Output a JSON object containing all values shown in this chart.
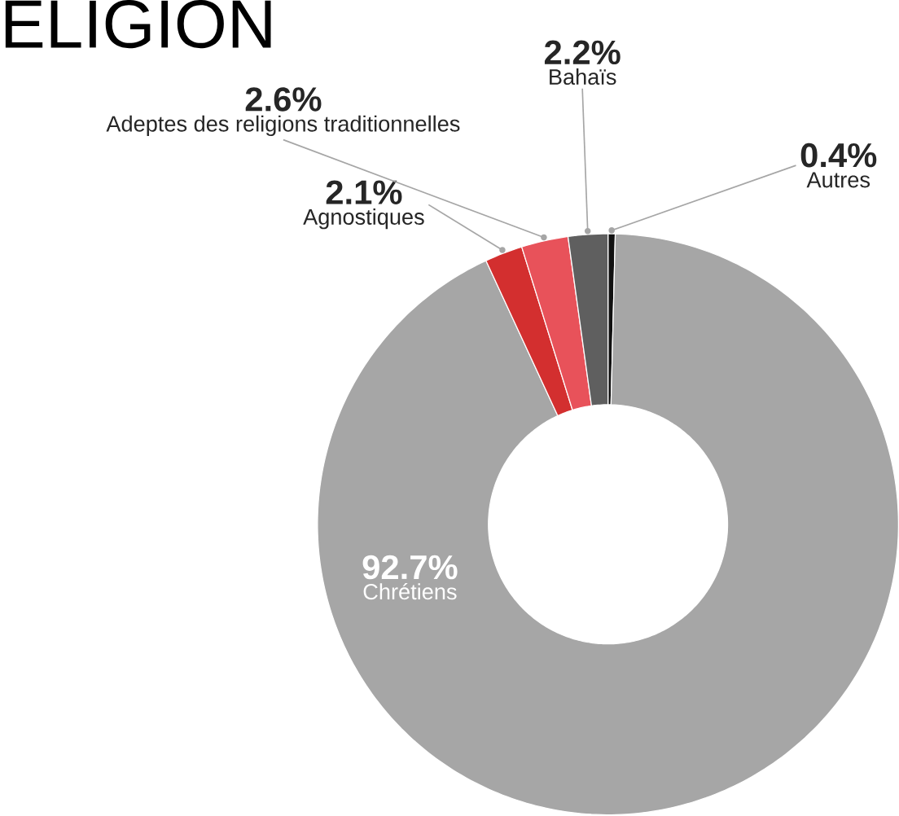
{
  "chart_data": {
    "type": "donut",
    "title": "ELIGION",
    "categories": [
      "Autres",
      "Chrétiens",
      "Agnostiques",
      "Adeptes des religions traditionnelles",
      "Bahaïs"
    ],
    "values": [
      0.4,
      92.7,
      2.1,
      2.6,
      2.2
    ],
    "value_labels": [
      "0.4%",
      "92.7%",
      "2.1%",
      "2.6%",
      "2.2%"
    ],
    "colors": [
      "#111111",
      "#a6a6a6",
      "#d32f2f",
      "#e8525a",
      "#5f5f5f"
    ]
  }
}
